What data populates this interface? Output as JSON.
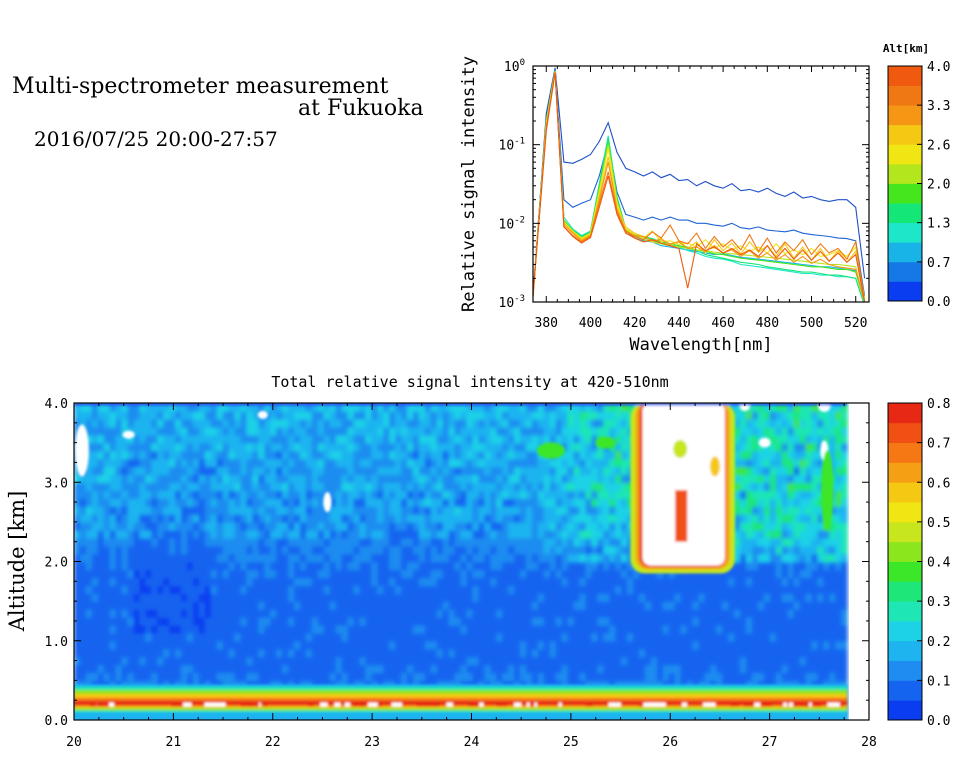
{
  "header": {
    "title_line1": "Multi-spectrometer measurement",
    "title_line2": "at Fukuoka",
    "period": "2016/07/25 20:00-27:57"
  },
  "chart_data": [
    {
      "type": "line",
      "id": "spectra",
      "xlabel": "Wavelength[nm]",
      "ylabel": "Relative signal intensity",
      "xlim": [
        374,
        526
      ],
      "ylim": [
        0.001,
        1
      ],
      "yscale": "log",
      "xticks": [
        380,
        400,
        420,
        440,
        460,
        480,
        500,
        520
      ],
      "ytick_labels": [
        {
          "value": 0.001,
          "base": "10",
          "exp": "-3"
        },
        {
          "value": 0.01,
          "base": "10",
          "exp": "-2"
        },
        {
          "value": 0.1,
          "base": "10",
          "exp": "-1"
        },
        {
          "value": 1,
          "base": "10",
          "exp": "0"
        }
      ],
      "grid": false,
      "colorbar": {
        "title": "Alt[km]",
        "labels": [
          "0.0",
          "0.7",
          "1.3",
          "2.0",
          "2.6",
          "3.3",
          "4.0"
        ],
        "colors": [
          "#0a3cf0",
          "#1478e6",
          "#18b4e8",
          "#1ee6c8",
          "#14e678",
          "#46e61e",
          "#b4e61e",
          "#f0e614",
          "#f5c814",
          "#f59614",
          "#f07814",
          "#f05a10"
        ]
      },
      "x": [
        374,
        380,
        384,
        388,
        392,
        396,
        400,
        404,
        408,
        412,
        416,
        420,
        424,
        428,
        432,
        436,
        440,
        444,
        448,
        452,
        456,
        460,
        464,
        468,
        472,
        476,
        480,
        484,
        488,
        492,
        496,
        500,
        504,
        508,
        512,
        516,
        520,
        524
      ],
      "series": [
        {
          "color": "#1e50c8",
          "values": [
            0.0012,
            0.25,
            0.95,
            0.06,
            0.058,
            0.065,
            0.075,
            0.11,
            0.19,
            0.08,
            0.05,
            0.045,
            0.04,
            0.045,
            0.038,
            0.042,
            0.035,
            0.036,
            0.03,
            0.034,
            0.03,
            0.028,
            0.032,
            0.026,
            0.027,
            0.025,
            0.028,
            0.024,
            0.022,
            0.025,
            0.021,
            0.022,
            0.02,
            0.019,
            0.02,
            0.02,
            0.016,
            0.002
          ]
        },
        {
          "color": "#1e64d2",
          "values": [
            0.0012,
            0.22,
            0.9,
            0.02,
            0.016,
            0.018,
            0.02,
            0.04,
            0.11,
            0.025,
            0.013,
            0.012,
            0.011,
            0.012,
            0.011,
            0.012,
            0.011,
            0.011,
            0.01,
            0.01,
            0.0095,
            0.0092,
            0.01,
            0.0088,
            0.0085,
            0.009,
            0.0082,
            0.008,
            0.0078,
            0.0082,
            0.0075,
            0.0072,
            0.007,
            0.0068,
            0.0065,
            0.0064,
            0.006,
            0.0012
          ]
        },
        {
          "color": "#18b4e8",
          "values": [
            0.0012,
            0.2,
            0.88,
            0.011,
            0.008,
            0.0065,
            0.0075,
            0.03,
            0.12,
            0.02,
            0.008,
            0.0065,
            0.006,
            0.0058,
            0.0052,
            0.005,
            0.0048,
            0.0046,
            0.0044,
            0.0042,
            0.004,
            0.0041,
            0.0039,
            0.0037,
            0.0036,
            0.0035,
            0.0034,
            0.0033,
            0.0032,
            0.0031,
            0.003,
            0.0029,
            0.0028,
            0.0028,
            0.0027,
            0.0026,
            0.0025,
            0.001
          ]
        },
        {
          "color": "#1ee6c8",
          "values": [
            0.0012,
            0.2,
            0.87,
            0.012,
            0.0085,
            0.007,
            0.008,
            0.032,
            0.13,
            0.022,
            0.0085,
            0.007,
            0.0065,
            0.006,
            0.0055,
            0.0052,
            0.005,
            0.0045,
            0.0042,
            0.0038,
            0.0036,
            0.0035,
            0.0033,
            0.003,
            0.0029,
            0.0028,
            0.0027,
            0.0026,
            0.0025,
            0.0024,
            0.0023,
            0.0023,
            0.0022,
            0.0022,
            0.0021,
            0.0021,
            0.002,
            0.0009
          ]
        },
        {
          "color": "#14e678",
          "values": [
            0.0012,
            0.2,
            0.87,
            0.011,
            0.0082,
            0.0068,
            0.0078,
            0.03,
            0.12,
            0.021,
            0.0085,
            0.0072,
            0.0068,
            0.0064,
            0.0058,
            0.0054,
            0.0052,
            0.0048,
            0.0045,
            0.004,
            0.0038,
            0.0036,
            0.0034,
            0.0032,
            0.0031,
            0.003,
            0.0028,
            0.0027,
            0.0026,
            0.0025,
            0.0024,
            0.0024,
            0.0023,
            0.0022,
            0.0022,
            0.0021,
            0.002,
            0.0009
          ]
        },
        {
          "color": "#46e61e",
          "values": [
            0.0012,
            0.2,
            0.86,
            0.011,
            0.008,
            0.0066,
            0.0076,
            0.028,
            0.11,
            0.02,
            0.0082,
            0.007,
            0.0066,
            0.0062,
            0.0058,
            0.0055,
            0.0052,
            0.005,
            0.0046,
            0.0044,
            0.0041,
            0.004,
            0.0038,
            0.0036,
            0.0035,
            0.0034,
            0.0033,
            0.0032,
            0.0031,
            0.003,
            0.0029,
            0.0028,
            0.0028,
            0.0027,
            0.0026,
            0.0026,
            0.0024,
            0.001
          ]
        },
        {
          "color": "#b4e61e",
          "values": [
            0.0012,
            0.19,
            0.86,
            0.01,
            0.0078,
            0.0064,
            0.0074,
            0.026,
            0.1,
            0.019,
            0.008,
            0.0068,
            0.0062,
            0.0058,
            0.0055,
            0.0052,
            0.005,
            0.0048,
            0.0046,
            0.0045,
            0.0043,
            0.0042,
            0.0041,
            0.004,
            0.0039,
            0.0038,
            0.0037,
            0.0036,
            0.0035,
            0.0034,
            0.0033,
            0.0032,
            0.0031,
            0.003,
            0.003,
            0.0029,
            0.0028,
            0.001
          ]
        },
        {
          "color": "#f0e614",
          "values": [
            0.0012,
            0.19,
            0.85,
            0.0105,
            0.008,
            0.0065,
            0.0075,
            0.025,
            0.09,
            0.018,
            0.0085,
            0.0072,
            0.0065,
            0.008,
            0.0058,
            0.006,
            0.0054,
            0.0056,
            0.005,
            0.0062,
            0.0048,
            0.0055,
            0.0046,
            0.0052,
            0.0044,
            0.005,
            0.0042,
            0.0055,
            0.0041,
            0.0046,
            0.004,
            0.0048,
            0.0038,
            0.004,
            0.0045,
            0.0038,
            0.005,
            0.0011
          ]
        },
        {
          "color": "#f5c814",
          "values": [
            0.0012,
            0.18,
            0.85,
            0.01,
            0.0078,
            0.0062,
            0.0072,
            0.022,
            0.07,
            0.016,
            0.009,
            0.0075,
            0.0068,
            0.0058,
            0.0065,
            0.0052,
            0.006,
            0.0048,
            0.0058,
            0.0042,
            0.0062,
            0.0045,
            0.0056,
            0.0041,
            0.0058,
            0.0043,
            0.0052,
            0.0038,
            0.0055,
            0.0036,
            0.005,
            0.0034,
            0.0048,
            0.0033,
            0.0045,
            0.0032,
            0.0044,
            0.001
          ]
        },
        {
          "color": "#f59614",
          "values": [
            0.0012,
            0.17,
            0.84,
            0.0095,
            0.0075,
            0.006,
            0.007,
            0.02,
            0.06,
            0.015,
            0.008,
            0.007,
            0.0068,
            0.006,
            0.0062,
            0.0055,
            0.0058,
            0.0048,
            0.005,
            0.0044,
            0.0052,
            0.0042,
            0.0046,
            0.0038,
            0.0045,
            0.0036,
            0.0042,
            0.0034,
            0.004,
            0.0032,
            0.0038,
            0.0031,
            0.0035,
            0.003,
            0.0028,
            0.0027,
            0.0026,
            0.001
          ]
        },
        {
          "color": "#f07814",
          "values": [
            0.0012,
            0.16,
            0.83,
            0.009,
            0.007,
            0.0058,
            0.0068,
            0.018,
            0.045,
            0.014,
            0.0078,
            0.0068,
            0.0062,
            0.0078,
            0.0065,
            0.0095,
            0.006,
            0.0055,
            0.0075,
            0.0048,
            0.0068,
            0.005,
            0.0062,
            0.0046,
            0.0072,
            0.0044,
            0.0065,
            0.0042,
            0.0058,
            0.0045,
            0.0062,
            0.004,
            0.0055,
            0.0042,
            0.0048,
            0.0035,
            0.0058,
            0.001
          ]
        },
        {
          "color": "#f05a10",
          "values": [
            0.0012,
            0.15,
            0.82,
            0.009,
            0.0068,
            0.0056,
            0.0066,
            0.016,
            0.04,
            0.013,
            0.0075,
            0.0065,
            0.0058,
            0.0062,
            0.0056,
            0.0052,
            0.0048,
            0.0015,
            0.0055,
            0.0045,
            0.005,
            0.0042,
            0.0048,
            0.004,
            0.0046,
            0.0038,
            0.0052,
            0.0036,
            0.0048,
            0.0035,
            0.0046,
            0.0034,
            0.0044,
            0.0033,
            0.0042,
            0.0032,
            0.004,
            0.001
          ]
        }
      ]
    },
    {
      "type": "heatmap",
      "id": "intensity",
      "title": "Total relative signal intensity at 420-510nm",
      "xlabel": "",
      "ylabel": "Altitude [km]",
      "xlim": [
        20,
        28
      ],
      "ylim": [
        0,
        4
      ],
      "xticks": [
        20,
        21,
        22,
        23,
        24,
        25,
        26,
        27,
        28
      ],
      "ytick_labels": [
        "0.0",
        "1.0",
        "2.0",
        "3.0",
        "4.0"
      ],
      "data_end_x": 27.78,
      "colorbar": {
        "range": [
          0,
          0.8
        ],
        "labels": [
          "0.0",
          "0.1",
          "0.2",
          "0.3",
          "0.4",
          "0.5",
          "0.6",
          "0.7",
          "0.8"
        ],
        "colors": [
          "#0a3cf0",
          "#1464f0",
          "#1e8cf0",
          "#1eb4f0",
          "#1ed2e6",
          "#1ee6b4",
          "#1ee678",
          "#3ce628",
          "#8ce61e",
          "#c8e61e",
          "#f0e614",
          "#f5c814",
          "#f5a014",
          "#f57814",
          "#f05014",
          "#e62814"
        ]
      },
      "saturated_color": "#ffffff",
      "features": [
        {
          "kind": "surface_layer",
          "x": [
            20,
            27.78
          ],
          "y": [
            0.1,
            0.45
          ],
          "value": 0.55
        },
        {
          "kind": "saturated_plume",
          "x": [
            25.72,
            26.55
          ],
          "y": [
            1.95,
            4.0
          ],
          "value": 0.9
        },
        {
          "kind": "plume_halo",
          "x": [
            25.6,
            26.65
          ],
          "y": [
            1.85,
            4.0
          ],
          "value": 0.45
        },
        {
          "kind": "enhanced_region",
          "x": [
            24.4,
            27.78
          ],
          "y": [
            2.0,
            4.0
          ],
          "value": 0.25
        },
        {
          "kind": "upper_patchy",
          "x": [
            20,
            27.78
          ],
          "y": [
            2.3,
            4.0
          ],
          "value": 0.14
        },
        {
          "kind": "background",
          "x": [
            20,
            27.78
          ],
          "y": [
            0.45,
            2.3
          ],
          "value": 0.06
        }
      ]
    }
  ]
}
